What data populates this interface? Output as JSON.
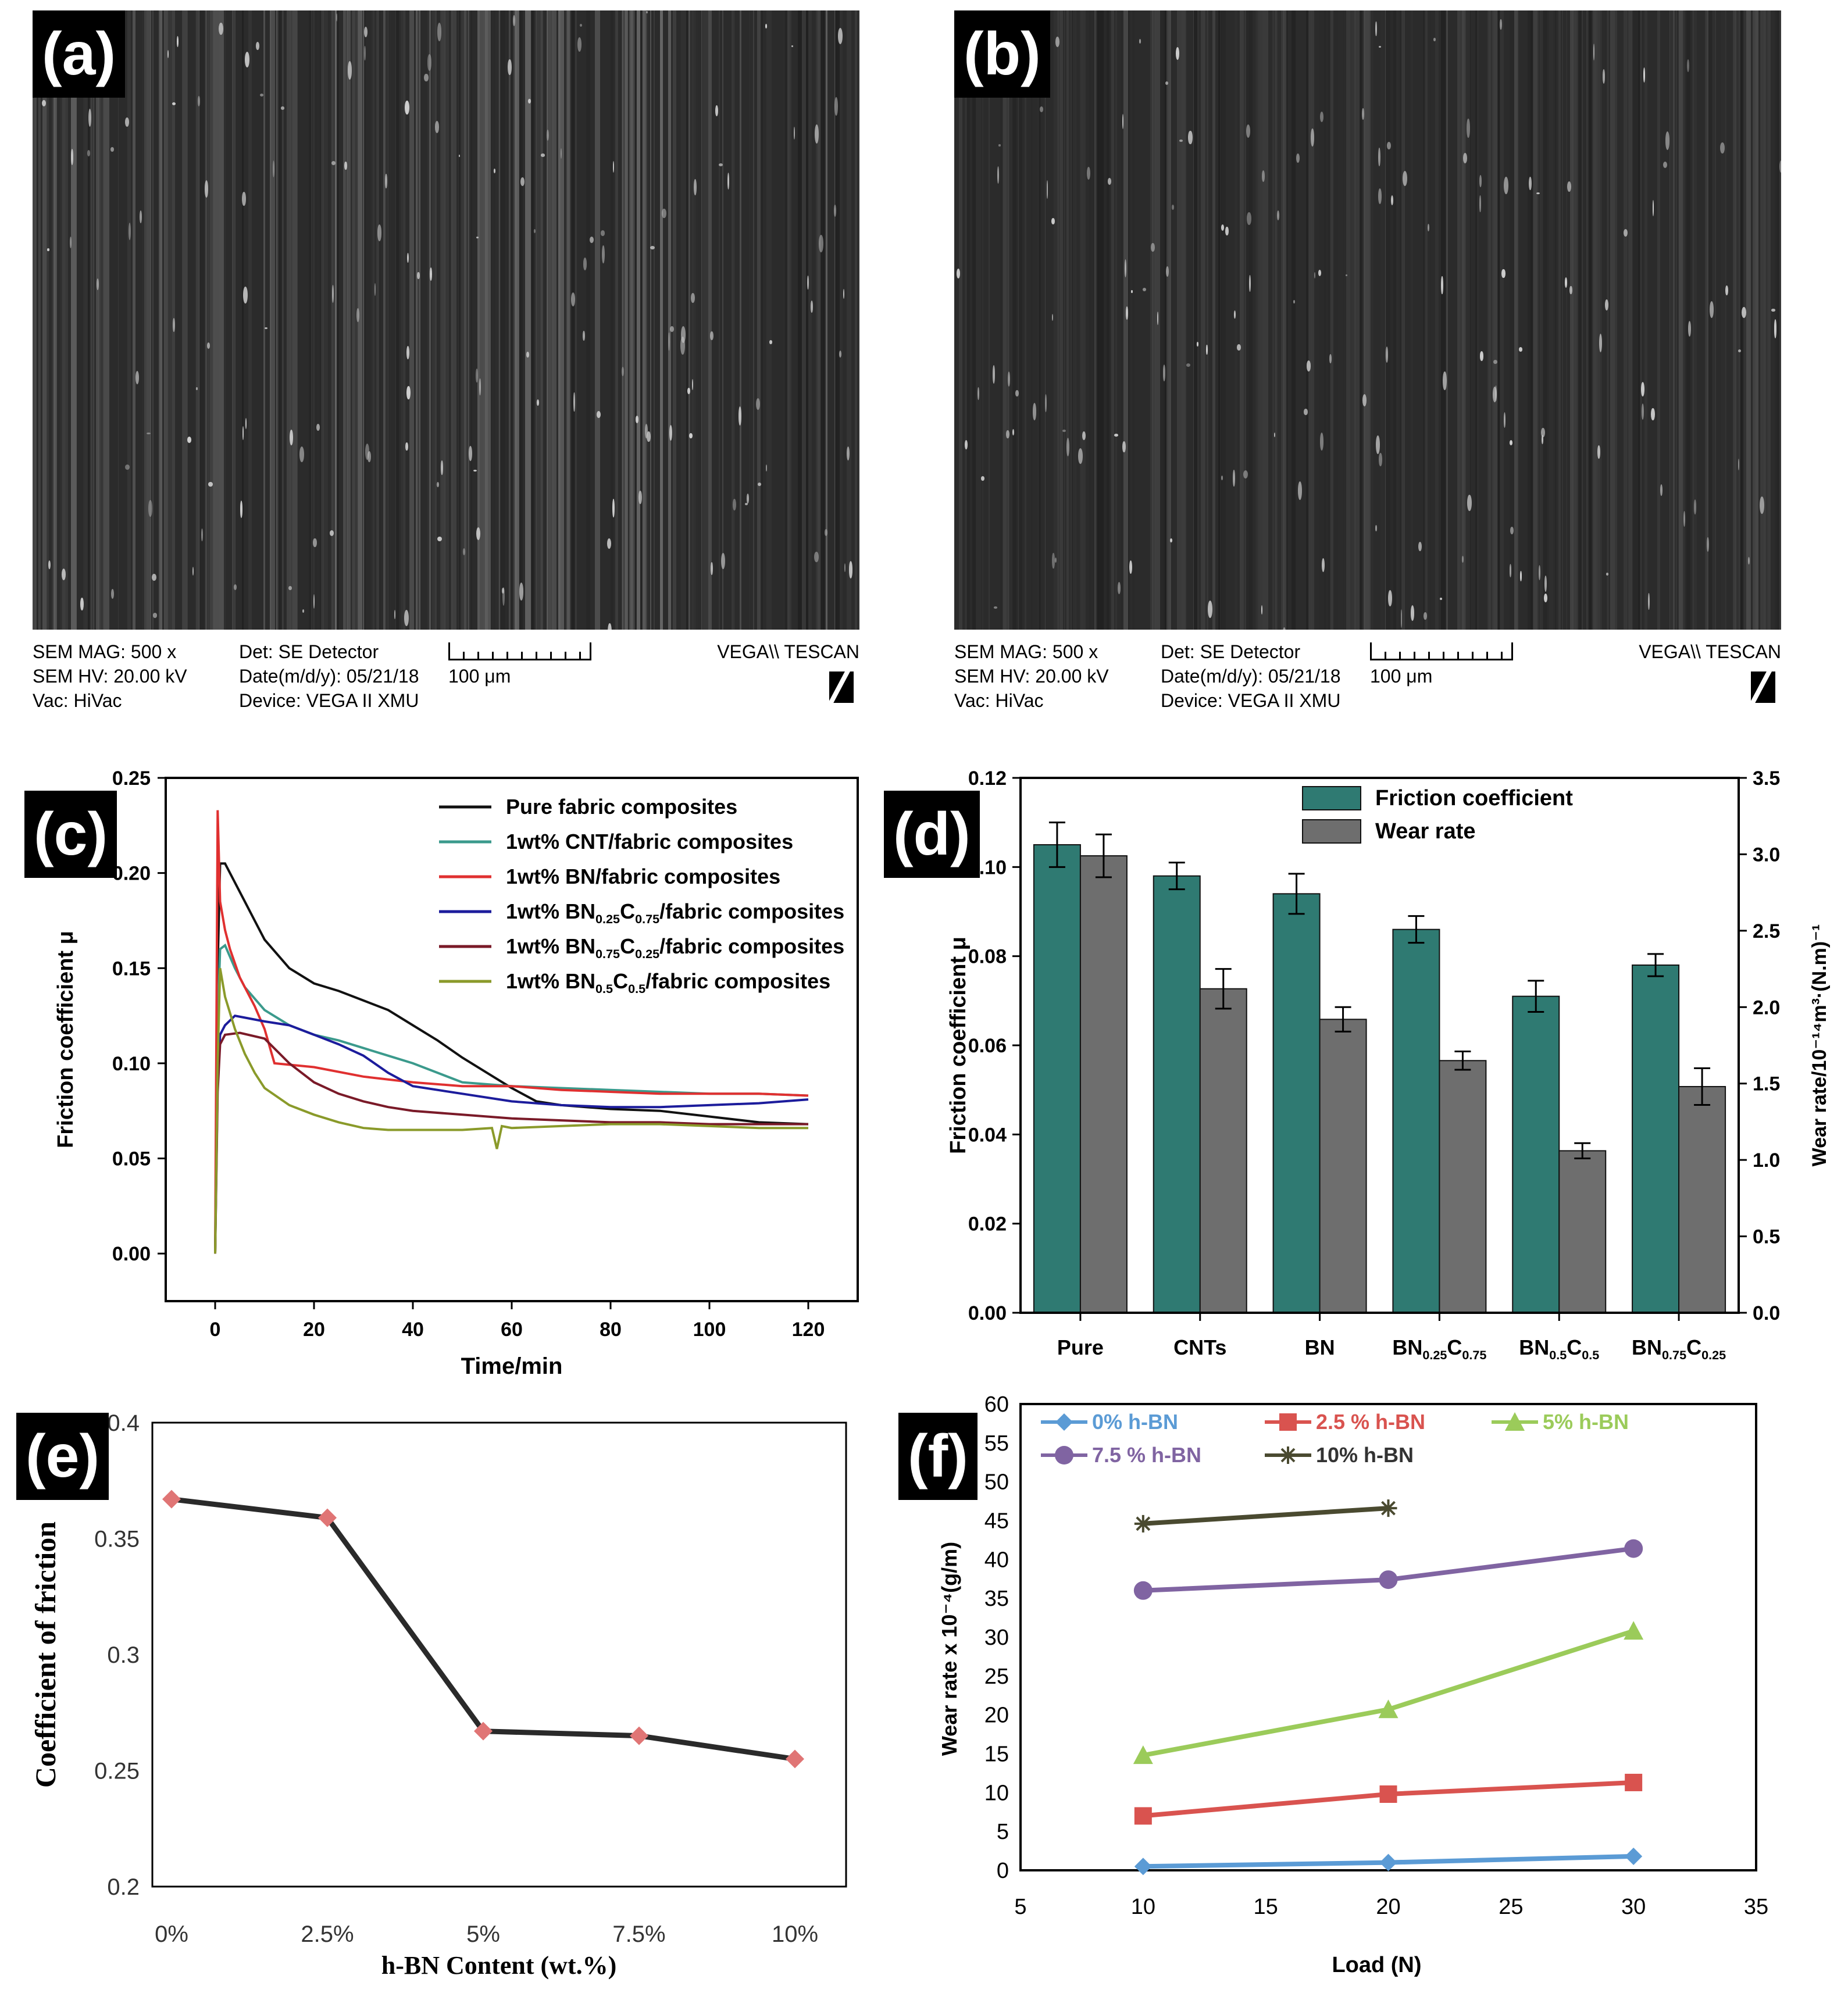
{
  "panels": {
    "a": {
      "label": "(a)",
      "info": {
        "mag": "SEM MAG: 500 x",
        "hv": "SEM HV: 20.00 kV",
        "vac": "Vac: HiVac",
        "det": "Det: SE Detector",
        "date": "Date(m/d/y): 05/21/18",
        "device": "Device: VEGA II XMU",
        "scale": "100 μm",
        "brand": "VEGA\\\\ TESCAN"
      }
    },
    "b": {
      "label": "(b)",
      "info": {
        "mag": "SEM MAG: 500 x",
        "hv": "SEM HV: 20.00 kV",
        "vac": "Vac: HiVac",
        "det": "Det: SE Detector",
        "date": "Date(m/d/y): 05/21/18",
        "device": "Device: VEGA II XMU",
        "scale": "100 μm",
        "brand": "VEGA\\\\ TESCAN"
      }
    },
    "c_label": "(c)",
    "d_label": "(d)",
    "e_label": "(e)",
    "f_label": "(f)"
  },
  "colors": {
    "teal": "#2f7a72",
    "gray": "#6e6e6e"
  },
  "chart_data": [
    {
      "id": "c",
      "type": "line",
      "xlabel": "Time/min",
      "ylabel": "Friction coefficient μ",
      "xlim": [
        -10,
        130
      ],
      "ylim": [
        -0.025,
        0.25
      ],
      "xticks": [
        0,
        20,
        40,
        60,
        80,
        100,
        120
      ],
      "yticks": [
        "0.00",
        "0.05",
        "0.10",
        "0.15",
        "0.20",
        "0.25"
      ],
      "legend_position": "top-right",
      "series": [
        {
          "name": "Pure fabric composites",
          "color": "#111111",
          "x": [
            0,
            0.5,
            1,
            2,
            4,
            6,
            8,
            10,
            15,
            20,
            25,
            30,
            35,
            40,
            45,
            50,
            55,
            60,
            65,
            70,
            75,
            80,
            90,
            100,
            110,
            120
          ],
          "y": [
            0,
            0.15,
            0.205,
            0.205,
            0.195,
            0.185,
            0.175,
            0.165,
            0.15,
            0.142,
            0.138,
            0.133,
            0.128,
            0.12,
            0.112,
            0.103,
            0.095,
            0.087,
            0.08,
            0.078,
            0.077,
            0.076,
            0.075,
            0.072,
            0.069,
            0.068
          ]
        },
        {
          "name": "1wt% CNT/fabric composites",
          "color": "#3b9a8c",
          "x": [
            0,
            0.5,
            1,
            2,
            4,
            6,
            10,
            15,
            20,
            25,
            30,
            35,
            40,
            45,
            50,
            60,
            70,
            80,
            90,
            100,
            110,
            120
          ],
          "y": [
            0,
            0.12,
            0.16,
            0.162,
            0.15,
            0.14,
            0.128,
            0.12,
            0.115,
            0.112,
            0.108,
            0.104,
            0.1,
            0.095,
            0.09,
            0.088,
            0.087,
            0.086,
            0.085,
            0.084,
            0.084,
            0.083
          ]
        },
        {
          "name": "1wt% BN/fabric composites",
          "color": "#e03030",
          "x": [
            0,
            0.5,
            1,
            2,
            3,
            5,
            8,
            10,
            12,
            20,
            30,
            40,
            50,
            60,
            70,
            80,
            90,
            100,
            110,
            120
          ],
          "y": [
            0,
            0.233,
            0.185,
            0.17,
            0.16,
            0.145,
            0.13,
            0.118,
            0.1,
            0.098,
            0.093,
            0.09,
            0.088,
            0.088,
            0.086,
            0.085,
            0.084,
            0.084,
            0.084,
            0.083
          ]
        },
        {
          "name": "1wt% BN0.25C0.75/fabric composites",
          "color": "#1c1c9c",
          "x": [
            0,
            0.5,
            1,
            2,
            4,
            6,
            10,
            15,
            20,
            25,
            30,
            35,
            40,
            50,
            60,
            70,
            80,
            90,
            100,
            110,
            120
          ],
          "y": [
            0,
            0.09,
            0.115,
            0.12,
            0.125,
            0.124,
            0.122,
            0.12,
            0.115,
            0.11,
            0.104,
            0.095,
            0.088,
            0.084,
            0.08,
            0.078,
            0.077,
            0.077,
            0.078,
            0.079,
            0.081
          ]
        },
        {
          "name": "1wt% BN0.75C0.25/fabric composites",
          "color": "#7a1a28",
          "x": [
            0,
            0.5,
            1,
            2,
            5,
            10,
            15,
            20,
            25,
            30,
            35,
            40,
            50,
            60,
            70,
            80,
            90,
            100,
            110,
            120
          ],
          "y": [
            0,
            0.085,
            0.11,
            0.115,
            0.116,
            0.113,
            0.1,
            0.09,
            0.084,
            0.08,
            0.077,
            0.075,
            0.073,
            0.071,
            0.07,
            0.069,
            0.069,
            0.068,
            0.068,
            0.068
          ]
        },
        {
          "name": "1wt% BN0.5C0.5/fabric composites",
          "color": "#8a9a2a",
          "x": [
            0,
            0.5,
            1,
            2,
            4,
            6,
            8,
            10,
            15,
            20,
            25,
            30,
            35,
            40,
            50,
            56,
            57,
            58,
            60,
            70,
            80,
            90,
            100,
            110,
            120
          ],
          "y": [
            0,
            0.1,
            0.15,
            0.135,
            0.118,
            0.105,
            0.095,
            0.087,
            0.078,
            0.073,
            0.069,
            0.066,
            0.065,
            0.065,
            0.065,
            0.066,
            0.055,
            0.067,
            0.066,
            0.067,
            0.068,
            0.068,
            0.067,
            0.066,
            0.066
          ]
        }
      ]
    },
    {
      "id": "d",
      "type": "bar",
      "categories": [
        "Pure",
        "CNTs",
        "BN",
        "BN0.25C0.75",
        "BN0.5C0.5",
        "BN0.75C0.25"
      ],
      "ylabel": "Friction coefficient μ",
      "ylabel_right": "Wear rate/10⁻¹⁴m³·(N.m)⁻¹",
      "ylim": [
        0,
        0.12
      ],
      "ylim_right": [
        0,
        3.5
      ],
      "yticks": [
        "0.00",
        "0.02",
        "0.04",
        "0.06",
        "0.08",
        "0.10",
        "0.12"
      ],
      "yticks_right": [
        "0.0",
        "0.5",
        "1.0",
        "1.5",
        "2.0",
        "2.5",
        "3.0",
        "3.5"
      ],
      "legend_position": "top-center",
      "series": [
        {
          "name": "Friction coefficient",
          "axis": "left",
          "color": "#2f7a72",
          "values": [
            0.105,
            0.098,
            0.094,
            0.086,
            0.071,
            0.078
          ],
          "errors": [
            0.005,
            0.003,
            0.0045,
            0.003,
            0.0035,
            0.0025
          ]
        },
        {
          "name": "Wear rate",
          "axis": "right",
          "color": "#6e6e6e",
          "values": [
            2.99,
            2.12,
            1.92,
            1.65,
            1.06,
            1.48
          ],
          "errors": [
            0.14,
            0.13,
            0.08,
            0.06,
            0.05,
            0.12
          ]
        }
      ]
    },
    {
      "id": "e",
      "type": "line",
      "categories": [
        "0%",
        "2.5%",
        "5%",
        "7.5%",
        "10%"
      ],
      "values": [
        0.367,
        0.359,
        0.267,
        0.265,
        0.255
      ],
      "xlabel": "h-BN Content (wt.%)",
      "ylabel": "Coefficient of friction",
      "ylim": [
        0.2,
        0.4
      ],
      "yticks": [
        "0.2",
        "0.25",
        "0.3",
        "0.35",
        "0.4"
      ],
      "line_color": "#2a2a2a",
      "marker_color": "#e07575"
    },
    {
      "id": "f",
      "type": "line",
      "xlabel": "Load (N)",
      "ylabel": "Wear rate x 10⁻⁴(g/m)",
      "xlim": [
        5,
        35
      ],
      "ylim": [
        0,
        60
      ],
      "xticks": [
        5,
        10,
        15,
        20,
        25,
        30,
        35
      ],
      "yticks": [
        0,
        5,
        10,
        15,
        20,
        25,
        30,
        35,
        40,
        45,
        50,
        55,
        60
      ],
      "legend_position": "top",
      "series": [
        {
          "name": "0% h-BN",
          "color": "#5b9bd5",
          "marker": "diamond",
          "x": [
            10,
            20,
            30
          ],
          "y": [
            0.5,
            1.0,
            1.8
          ]
        },
        {
          "name": "2.5 % h-BN",
          "color": "#d9534f",
          "marker": "square",
          "x": [
            10,
            20,
            30
          ],
          "y": [
            7,
            9.8,
            11.3
          ]
        },
        {
          "name": "5% h-BN",
          "color": "#9bcb5a",
          "marker": "triangle",
          "x": [
            10,
            20,
            30
          ],
          "y": [
            14.8,
            20.7,
            30.8
          ]
        },
        {
          "name": "7.5 % h-BN",
          "color": "#8064a2",
          "marker": "circle",
          "x": [
            10,
            20,
            30
          ],
          "y": [
            36,
            37.4,
            41.4
          ]
        },
        {
          "name": "10% h-BN",
          "color": "#4a4a30",
          "marker": "star",
          "x": [
            10,
            20
          ],
          "y": [
            44.6,
            46.6
          ]
        }
      ]
    }
  ]
}
